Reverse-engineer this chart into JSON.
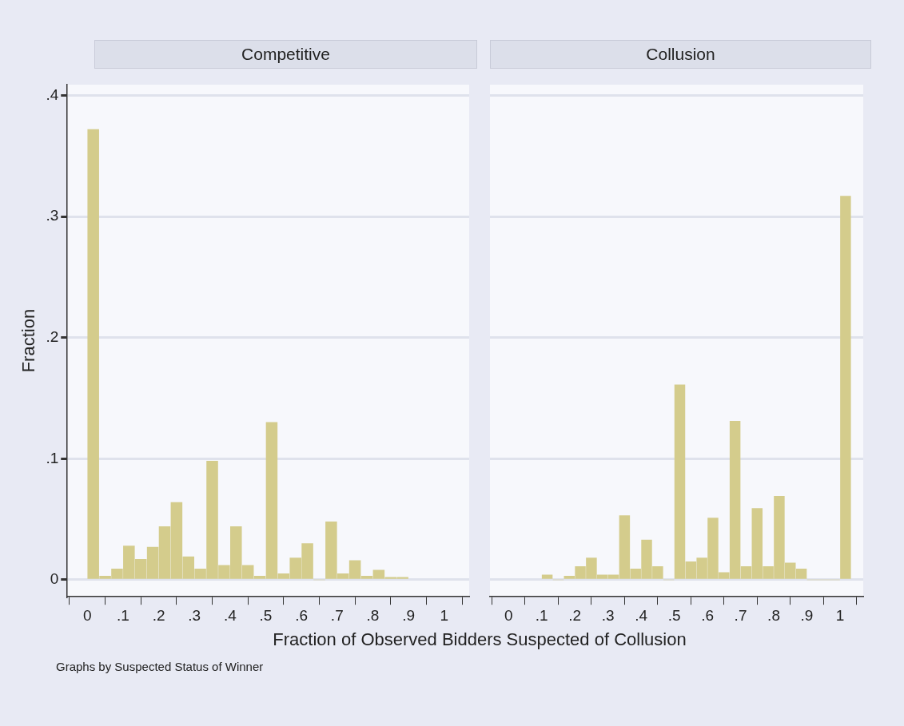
{
  "chart_data": [
    {
      "type": "histogram",
      "title": "Competitive",
      "ylabel": "Fraction",
      "xlabel": "Fraction of Observed Bidders Suspected of Collusion",
      "annotations": [
        "Graphs by Suspected Status of Winner"
      ],
      "color": "#d4cc8c",
      "grid": "y",
      "bins": [
        0,
        0.0333,
        0.0667,
        0.1,
        0.1333,
        0.1667,
        0.2,
        0.2333,
        0.2667,
        0.3,
        0.3333,
        0.3667,
        0.4,
        0.4333,
        0.4667,
        0.5,
        0.5333,
        0.5667,
        0.6,
        0.6333,
        0.6667,
        0.7,
        0.7333,
        0.7667,
        0.8,
        0.8333,
        0.8667,
        0.9
      ],
      "values": [
        0.372,
        0.003,
        0.009,
        0.028,
        0.017,
        0.027,
        0.044,
        0.064,
        0.019,
        0.009,
        0.098,
        0.012,
        0.044,
        0.012,
        0.003,
        0.13,
        0.005,
        0.018,
        0.03,
        0,
        0.048,
        0.005,
        0.016,
        0.003,
        0.008,
        0.002,
        0.002
      ],
      "xlim": [
        -0.056,
        1.07
      ],
      "ylim": [
        -0.014,
        0.409
      ],
      "xticks": [
        {
          "value": 0,
          "label": "0"
        },
        {
          "value": 0.1,
          "label": ".1"
        },
        {
          "value": 0.2,
          "label": ".2"
        },
        {
          "value": 0.3,
          "label": ".3"
        },
        {
          "value": 0.4,
          "label": ".4"
        },
        {
          "value": 0.5,
          "label": ".5"
        },
        {
          "value": 0.6,
          "label": ".6"
        },
        {
          "value": 0.7,
          "label": ".7"
        },
        {
          "value": 0.8,
          "label": ".8"
        },
        {
          "value": 0.9,
          "label": ".9"
        },
        {
          "value": 1,
          "label": "1"
        }
      ],
      "yticks": [
        {
          "value": 0,
          "label": "0"
        },
        {
          "value": 0.1,
          "label": ".1"
        },
        {
          "value": 0.2,
          "label": ".2"
        },
        {
          "value": 0.3,
          "label": ".3"
        },
        {
          "value": 0.4,
          "label": ".4"
        }
      ]
    },
    {
      "type": "histogram",
      "title": "Collusion",
      "color": "#d4cc8c",
      "grid": "y",
      "tick_labels": "x",
      "bins": [
        0.1,
        0.1333,
        0.1667,
        0.2,
        0.2333,
        0.2667,
        0.3,
        0.3333,
        0.3667,
        0.4,
        0.4333,
        0.4667,
        0.5,
        0.5333,
        0.5667,
        0.6,
        0.6333,
        0.6667,
        0.7,
        0.7333,
        0.7667,
        0.8,
        0.8333,
        0.8667,
        0.9,
        1,
        1.0333
      ],
      "values": [
        0.004,
        0,
        0.003,
        0.011,
        0.018,
        0.004,
        0.004,
        0.053,
        0.009,
        0.033,
        0.011,
        0,
        0.161,
        0.015,
        0.018,
        0.051,
        0.006,
        0.131,
        0.011,
        0.059,
        0.011,
        0.069,
        0.014,
        0.009,
        0,
        0.317
      ],
      "xlim": [
        -0.056,
        1.07
      ],
      "ylim": [
        -0.014,
        0.409
      ],
      "xticks": [
        {
          "value": 0,
          "label": "0"
        },
        {
          "value": 0.1,
          "label": ".1"
        },
        {
          "value": 0.2,
          "label": ".2"
        },
        {
          "value": 0.3,
          "label": ".3"
        },
        {
          "value": 0.4,
          "label": ".4"
        },
        {
          "value": 0.5,
          "label": ".5"
        },
        {
          "value": 0.6,
          "label": ".6"
        },
        {
          "value": 0.7,
          "label": ".7"
        },
        {
          "value": 0.8,
          "label": ".8"
        },
        {
          "value": 0.9,
          "label": ".9"
        },
        {
          "value": 1,
          "label": "1"
        }
      ],
      "yticks": [
        {
          "value": 0,
          "label": null
        },
        {
          "value": 0.1,
          "label": null
        },
        {
          "value": 0.2,
          "label": null
        },
        {
          "value": 0.3,
          "label": null
        },
        {
          "value": 0.4,
          "label": null
        }
      ]
    }
  ]
}
